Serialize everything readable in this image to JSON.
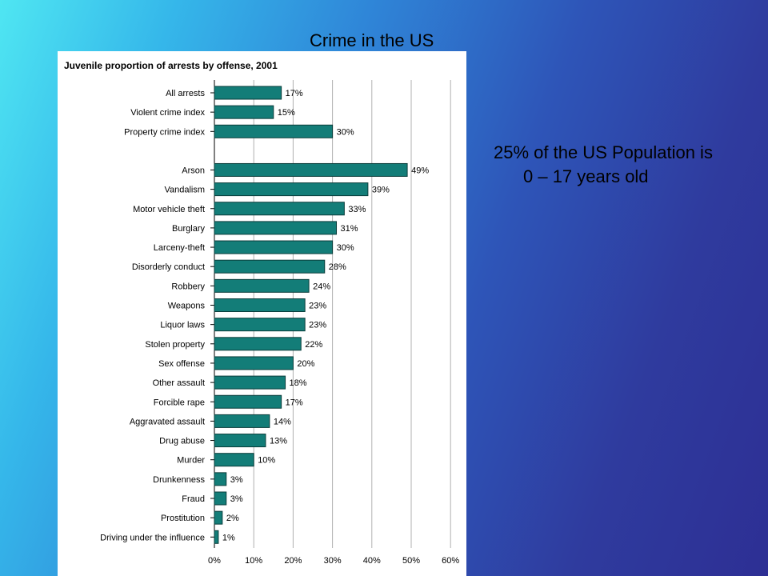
{
  "slide": {
    "title": "Crime in the US",
    "note_line1": "25% of the US Population is",
    "note_line2": "0 – 17 years old"
  },
  "colors": {
    "bar_fill": "#137d78",
    "bar_stroke": "#0a3d3b",
    "grid": "#b0b0b0",
    "background_left": "#4fe6f2",
    "background_right": "#2d2f94"
  },
  "chart_data": {
    "type": "bar",
    "orientation": "horizontal",
    "title": "Juvenile proportion of arrests by offense, 2001",
    "xlabel": "",
    "ylabel": "",
    "xlim": [
      0,
      60
    ],
    "x_ticks": [
      "0%",
      "10%",
      "20%",
      "30%",
      "40%",
      "50%",
      "60%"
    ],
    "grid": true,
    "value_suffix": "%",
    "groups": [
      {
        "categories": [
          "All arrests",
          "Violent crime index",
          "Property crime index"
        ],
        "values": [
          17,
          15,
          30
        ]
      },
      {
        "categories": [
          "Arson",
          "Vandalism",
          "Motor vehicle theft",
          "Burglary",
          "Larceny-theft",
          "Disorderly conduct",
          "Robbery",
          "Weapons",
          "Liquor laws",
          "Stolen property",
          "Sex offense",
          "Other assault",
          "Forcible rape",
          "Aggravated assault",
          "Drug abuse",
          "Murder",
          "Drunkenness",
          "Fraud",
          "Prostitution",
          "Driving under the influence"
        ],
        "values": [
          49,
          39,
          33,
          31,
          30,
          28,
          24,
          23,
          23,
          22,
          20,
          18,
          17,
          14,
          13,
          10,
          3,
          3,
          2,
          1
        ]
      }
    ]
  }
}
